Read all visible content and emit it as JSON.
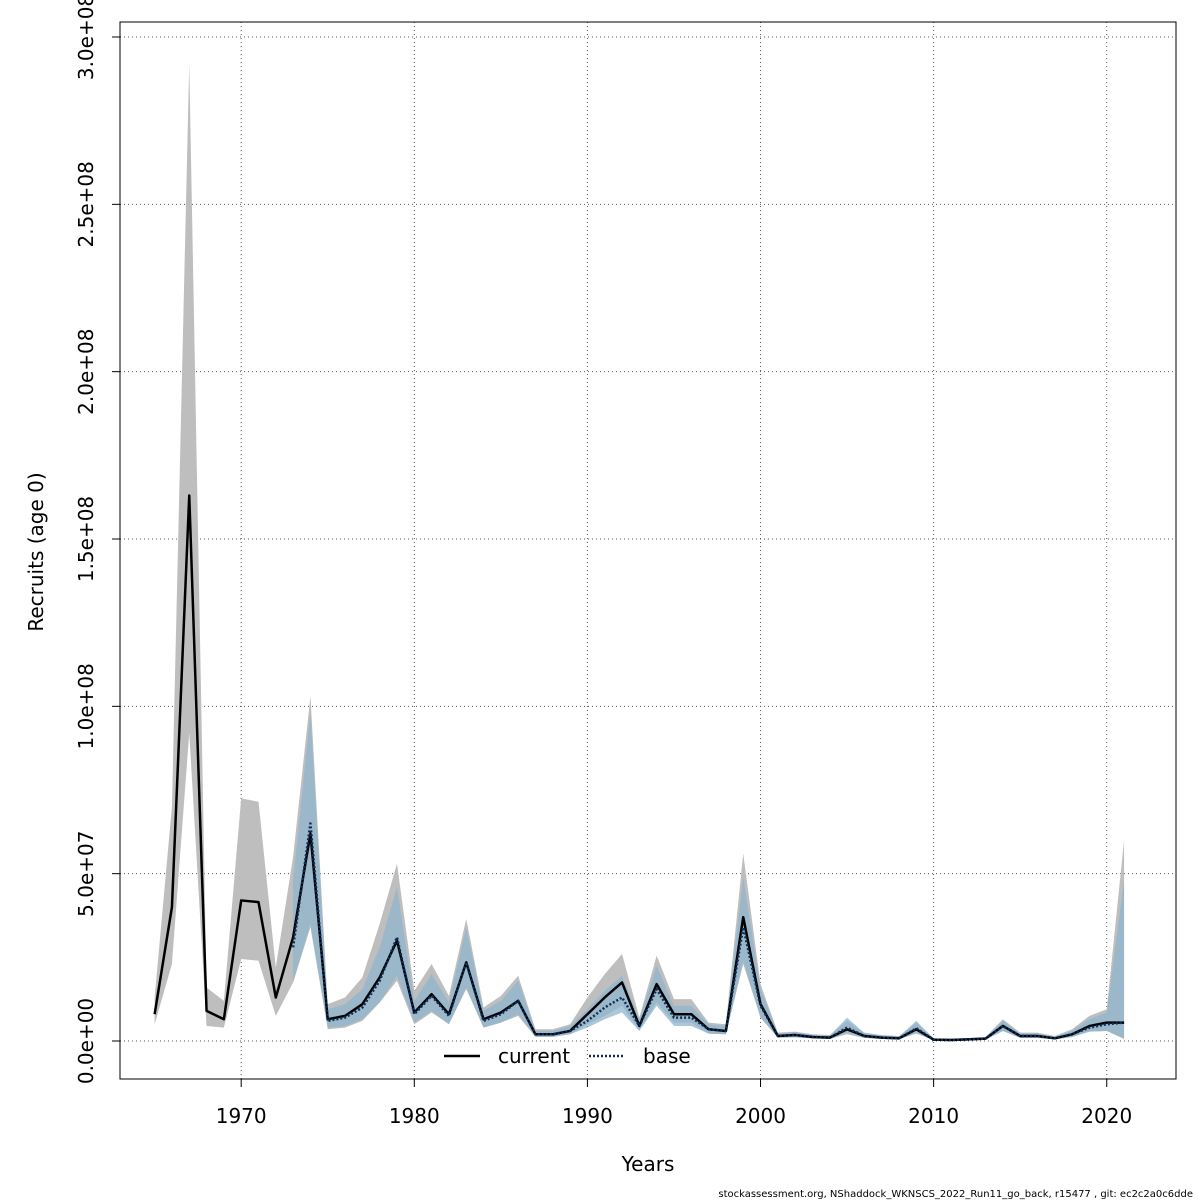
{
  "chart_data": {
    "type": "line",
    "xlabel": "Years",
    "ylabel": "Recruits (age 0)",
    "xlim": [
      1963,
      2024
    ],
    "ylim": [
      0,
      300000000
    ],
    "x_ticks": [
      1970,
      1980,
      1990,
      2000,
      2010,
      2020
    ],
    "y_ticks": [
      0,
      50000000,
      100000000,
      150000000,
      200000000,
      250000000,
      300000000
    ],
    "y_tick_labels": [
      "0.0e+00",
      "5.0e+07",
      "1.0e+08",
      "1.5e+08",
      "2.0e+08",
      "2.5e+08",
      "3.0e+08"
    ],
    "grid": true,
    "legend": {
      "placement": "bottom-center"
    },
    "x": [
      1965,
      1966,
      1967,
      1968,
      1969,
      1970,
      1971,
      1972,
      1973,
      1974,
      1975,
      1976,
      1977,
      1978,
      1979,
      1980,
      1981,
      1982,
      1983,
      1984,
      1985,
      1986,
      1987,
      1988,
      1989,
      1990,
      1991,
      1992,
      1993,
      1994,
      1995,
      1996,
      1997,
      1998,
      1999,
      2000,
      2001,
      2002,
      2003,
      2004,
      2005,
      2006,
      2007,
      2008,
      2009,
      2010,
      2011,
      2012,
      2013,
      2014,
      2015,
      2016,
      2017,
      2018,
      2019,
      2020,
      2021
    ],
    "series": [
      {
        "name": "current",
        "color": "#000000",
        "band_color": "#bebebe",
        "values": [
          8000000,
          40000000,
          163000000,
          9000000,
          6500000,
          42000000,
          41500000,
          13000000,
          31000000,
          62000000,
          6500000,
          7500000,
          11000000,
          19000000,
          30000000,
          8500000,
          14000000,
          8000000,
          23500000,
          6500000,
          8500000,
          12000000,
          2000000,
          2000000,
          3000000,
          8000000,
          13000000,
          17500000,
          4500000,
          17000000,
          8000000,
          8000000,
          3500000,
          3000000,
          37000000,
          11000000,
          1500000,
          1800000,
          1200000,
          1000000,
          3500000,
          1500000,
          1000000,
          800000,
          3500000,
          400000,
          300000,
          500000,
          700000,
          4500000,
          1500000,
          1500000,
          800000,
          2000000,
          4500000,
          5500000,
          5500000
        ],
        "lower": [
          5000000,
          23000000,
          92000000,
          4500000,
          4000000,
          24500000,
          24000000,
          7500000,
          17500000,
          34000000,
          3500000,
          4000000,
          6000000,
          11500000,
          18000000,
          5000000,
          8500000,
          5000000,
          15500000,
          4000000,
          5500000,
          7500000,
          1200000,
          1200000,
          2000000,
          5000000,
          7500000,
          10500000,
          3200000,
          11500000,
          5500000,
          5500000,
          2200000,
          2000000,
          23000000,
          7000000,
          1000000,
          1100000,
          800000,
          600000,
          2000000,
          900000,
          600000,
          500000,
          2200000,
          250000,
          200000,
          300000,
          400000,
          3000000,
          900000,
          900000,
          500000,
          1200000,
          2800000,
          3000000,
          600000
        ],
        "upper": [
          13000000,
          70000000,
          292000000,
          16000000,
          12000000,
          72500000,
          71500000,
          22000000,
          55000000,
          103000000,
          11000000,
          13000000,
          19000000,
          35000000,
          53000000,
          15000000,
          23000000,
          13500000,
          36500000,
          10000000,
          13500000,
          19500000,
          3500000,
          3500000,
          5000000,
          13000000,
          20000000,
          26000000,
          7000000,
          25500000,
          12500000,
          12500000,
          5500000,
          5000000,
          56000000,
          17000000,
          2500000,
          2800000,
          2000000,
          1800000,
          6000000,
          2500000,
          1800000,
          1500000,
          5500000,
          800000,
          700000,
          900000,
          1200000,
          6500000,
          2500000,
          2500000,
          1500000,
          3500000,
          7500000,
          9500000,
          60000000
        ]
      },
      {
        "name": "base",
        "color": "#0b2f5a",
        "band_color": "#8fb6cd",
        "values": [
          null,
          null,
          null,
          null,
          null,
          null,
          null,
          null,
          28000000,
          65000000,
          6000000,
          7000000,
          10000000,
          18000000,
          31000000,
          8000000,
          13500000,
          7500000,
          23500000,
          6000000,
          8000000,
          12000000,
          2000000,
          2000000,
          3000000,
          6000000,
          10000000,
          13000000,
          4500000,
          15500000,
          7000000,
          7000000,
          3500000,
          3000000,
          34000000,
          10500000,
          1500000,
          1800000,
          1200000,
          1000000,
          4000000,
          1500000,
          1000000,
          800000,
          3800000,
          400000,
          300000,
          500000,
          700000,
          4500000,
          1500000,
          1500000,
          800000,
          2000000,
          4000000,
          5000000,
          5500000
        ],
        "lower": [
          null,
          null,
          null,
          null,
          null,
          null,
          null,
          null,
          17500000,
          35000000,
          4000000,
          4500000,
          6500000,
          11500000,
          19500000,
          5500000,
          9000000,
          5000000,
          16000000,
          4000000,
          5500000,
          8000000,
          1300000,
          1300000,
          2000000,
          4000000,
          6500000,
          8500000,
          3000000,
          10500000,
          4500000,
          4500000,
          2200000,
          2000000,
          24000000,
          7000000,
          1000000,
          1100000,
          800000,
          600000,
          2500000,
          1000000,
          600000,
          500000,
          2500000,
          250000,
          200000,
          300000,
          400000,
          3000000,
          1000000,
          1000000,
          500000,
          1200000,
          2800000,
          3000000,
          800000
        ],
        "upper": [
          null,
          null,
          null,
          null,
          null,
          null,
          null,
          null,
          48000000,
          98000000,
          9500000,
          11000000,
          15500000,
          28000000,
          46000000,
          12000000,
          20000000,
          11500000,
          34000000,
          9000000,
          12000000,
          18000000,
          3000000,
          3000000,
          4500000,
          9500000,
          15000000,
          19500000,
          6500000,
          22500000,
          10500000,
          10500000,
          5000000,
          4500000,
          49000000,
          15500000,
          2200000,
          2600000,
          1800000,
          1600000,
          7000000,
          2300000,
          1600000,
          1300000,
          6000000,
          700000,
          600000,
          800000,
          1100000,
          6000000,
          2200000,
          2200000,
          1300000,
          3000000,
          6500000,
          8500000,
          48000000
        ]
      }
    ]
  },
  "footer": {
    "text": "stockassessment.org, NShaddock_WKNSCS_2022_Run11_go_back, r15477 , git: ec2c2a0c6dde"
  }
}
